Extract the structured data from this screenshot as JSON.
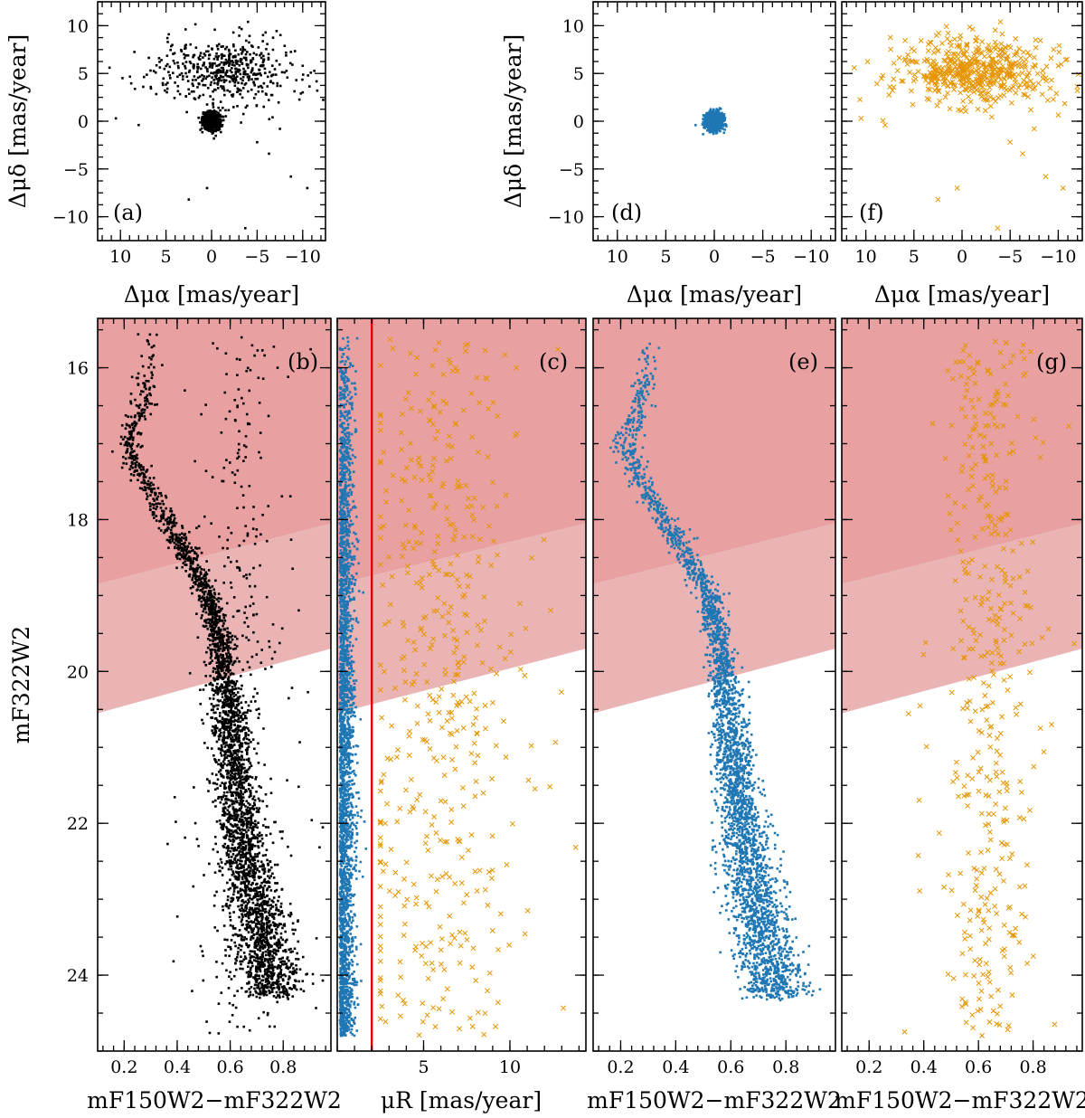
{
  "colors": {
    "cluster": "#1f77b4",
    "field": "#e69500",
    "all": "#000000",
    "bright_band": "#e8a0a0",
    "mid_band": "#eab4b4",
    "cut_line": "#e00000"
  },
  "chart_data": [
    {
      "id": "a",
      "type": "scatter",
      "tag": "(a)",
      "xlabel": "Δμα [mas/year]",
      "ylabel": "Δμδ [mas/year]",
      "xlim": [
        12.5,
        -12.5
      ],
      "ylim": [
        -12.5,
        12.5
      ],
      "xticks": [
        10,
        5,
        0,
        -5,
        -10
      ],
      "yticks": [
        -10,
        -5,
        0,
        5,
        10
      ],
      "series": [
        {
          "kind": "cluster_blob",
          "color": "#000000",
          "center": [
            0.0,
            0.0
          ],
          "spread": [
            0.45,
            0.45
          ],
          "count": 900,
          "marker": "dot"
        },
        {
          "kind": "field",
          "color": "#000000",
          "center": [
            -1.5,
            5.2
          ],
          "spread": [
            3.8,
            1.7
          ],
          "count": 520,
          "marker": "dot"
        },
        {
          "kind": "outliers",
          "color": "#000000",
          "points": [
            [
              6.7,
              5.3
            ],
            [
              8.0,
              -0.4
            ],
            [
              7.5,
              3.6
            ],
            [
              5.5,
              6.4
            ],
            [
              -7.5,
              -0.8
            ],
            [
              -9.8,
              2.9
            ],
            [
              -10.5,
              -7.0
            ],
            [
              -8.7,
              -5.8
            ],
            [
              -3.7,
              -11.2
            ],
            [
              0.5,
              -7.0
            ],
            [
              2.5,
              -8.2
            ],
            [
              -6.3,
              -3.4
            ],
            [
              -10.0,
              5.8
            ],
            [
              -9.3,
              4.3
            ],
            [
              -5.0,
              -2.2
            ],
            [
              10.5,
              0.3
            ],
            [
              11.2,
              5.6
            ],
            [
              -4.0,
              10.4
            ]
          ],
          "marker": "dot"
        }
      ]
    },
    {
      "id": "b",
      "type": "scatter",
      "tag": "(b)",
      "xlabel": "mF150W2−mF322W2",
      "ylabel": "mF322W2",
      "xlim": [
        0.1,
        0.98
      ],
      "ylim": [
        25.0,
        15.35
      ],
      "xticks": [
        0.2,
        0.4,
        0.6,
        0.8
      ],
      "yticks": [
        16,
        18,
        20,
        22,
        24
      ],
      "series": [
        {
          "kind": "sequence",
          "color": "#000000",
          "count": 3200,
          "marker": "dot"
        },
        {
          "kind": "field_cmd",
          "color": "#000000",
          "count": 420,
          "marker": "dot"
        }
      ]
    },
    {
      "id": "c",
      "type": "scatter",
      "tag": "(c)",
      "xlabel": "μR [mas/year]",
      "ylabel": "",
      "xlim": [
        0.0,
        14.4
      ],
      "ylim": [
        25.0,
        15.35
      ],
      "xticks": [
        5,
        10
      ],
      "yticks": [
        16,
        18,
        20,
        22,
        24
      ],
      "cut_x": 2.0,
      "series": [
        {
          "kind": "cluster_mu",
          "color": "#1f77b4",
          "count": 2600,
          "marker": "dot"
        },
        {
          "kind": "field_mu",
          "color": "#e69500",
          "count": 480,
          "marker": "cross"
        }
      ]
    },
    {
      "id": "d",
      "type": "scatter",
      "tag": "(d)",
      "xlabel": "Δμα [mas/year]",
      "ylabel": "Δμδ [mas/year]",
      "xlim": [
        12.5,
        -12.5
      ],
      "ylim": [
        -12.5,
        12.5
      ],
      "xticks": [
        10,
        5,
        0,
        -5,
        -10
      ],
      "yticks": [
        -10,
        -5,
        0,
        5,
        10
      ],
      "series": [
        {
          "kind": "cluster_blob",
          "color": "#1f77b4",
          "center": [
            0.0,
            0.0
          ],
          "spread": [
            0.45,
            0.45
          ],
          "count": 1100,
          "marker": "dot"
        }
      ]
    },
    {
      "id": "e",
      "type": "scatter",
      "tag": "(e)",
      "xlabel": "mF150W2−mF322W2",
      "ylabel": "",
      "xlim": [
        0.1,
        0.98
      ],
      "ylim": [
        25.0,
        15.35
      ],
      "xticks": [
        0.2,
        0.4,
        0.6,
        0.8
      ],
      "yticks": [
        16,
        18,
        20,
        22,
        24
      ],
      "series": [
        {
          "kind": "sequence",
          "color": "#1f77b4",
          "count": 3200,
          "marker": "dot"
        }
      ]
    },
    {
      "id": "f",
      "type": "scatter",
      "tag": "(f)",
      "xlabel": "Δμα [mas/year]",
      "ylabel": "",
      "xlim": [
        12.5,
        -12.5
      ],
      "ylim": [
        -12.5,
        12.5
      ],
      "xticks": [
        10,
        5,
        0,
        -5,
        -10
      ],
      "yticks": [
        -10,
        -5,
        0,
        5,
        10
      ],
      "series": [
        {
          "kind": "field",
          "color": "#e69500",
          "center": [
            -1.5,
            5.2
          ],
          "spread": [
            3.8,
            1.7
          ],
          "count": 520,
          "marker": "cross"
        },
        {
          "kind": "outliers",
          "color": "#e69500",
          "points": [
            [
              6.7,
              5.3
            ],
            [
              8.0,
              -0.4
            ],
            [
              7.5,
              3.6
            ],
            [
              5.5,
              6.4
            ],
            [
              -7.5,
              -0.8
            ],
            [
              -9.8,
              2.9
            ],
            [
              -10.5,
              -7.0
            ],
            [
              -8.7,
              -5.8
            ],
            [
              -3.7,
              -11.2
            ],
            [
              0.5,
              -7.0
            ],
            [
              2.5,
              -8.2
            ],
            [
              -6.3,
              -3.4
            ],
            [
              -10.0,
              5.8
            ],
            [
              -9.3,
              4.3
            ],
            [
              -5.0,
              -2.2
            ],
            [
              10.5,
              0.3
            ],
            [
              11.2,
              5.6
            ],
            [
              -4.0,
              10.4
            ]
          ],
          "marker": "cross"
        }
      ]
    },
    {
      "id": "g",
      "type": "scatter",
      "tag": "(g)",
      "xlabel": "mF150W2−mF322W2",
      "ylabel": "",
      "xlim": [
        0.1,
        0.98
      ],
      "ylim": [
        25.0,
        15.35
      ],
      "xticks": [
        0.2,
        0.4,
        0.6,
        0.8
      ],
      "yticks": [
        16,
        18,
        20,
        22,
        24
      ],
      "series": [
        {
          "kind": "field_cmd",
          "color": "#e69500",
          "count": 420,
          "marker": "cross"
        }
      ]
    }
  ],
  "bands": {
    "bright_upper_edge": [
      [
        0.1,
        18.85
      ],
      [
        0.98,
        18.05
      ]
    ],
    "mid_lower_edge": [
      [
        0.1,
        20.55
      ],
      [
        0.98,
        19.7
      ]
    ],
    "c_bright_upper_edge": [
      [
        0.0,
        18.85
      ],
      [
        14.4,
        18.05
      ]
    ],
    "c_mid_lower_edge": [
      [
        0.0,
        20.55
      ],
      [
        14.4,
        19.7
      ]
    ]
  }
}
